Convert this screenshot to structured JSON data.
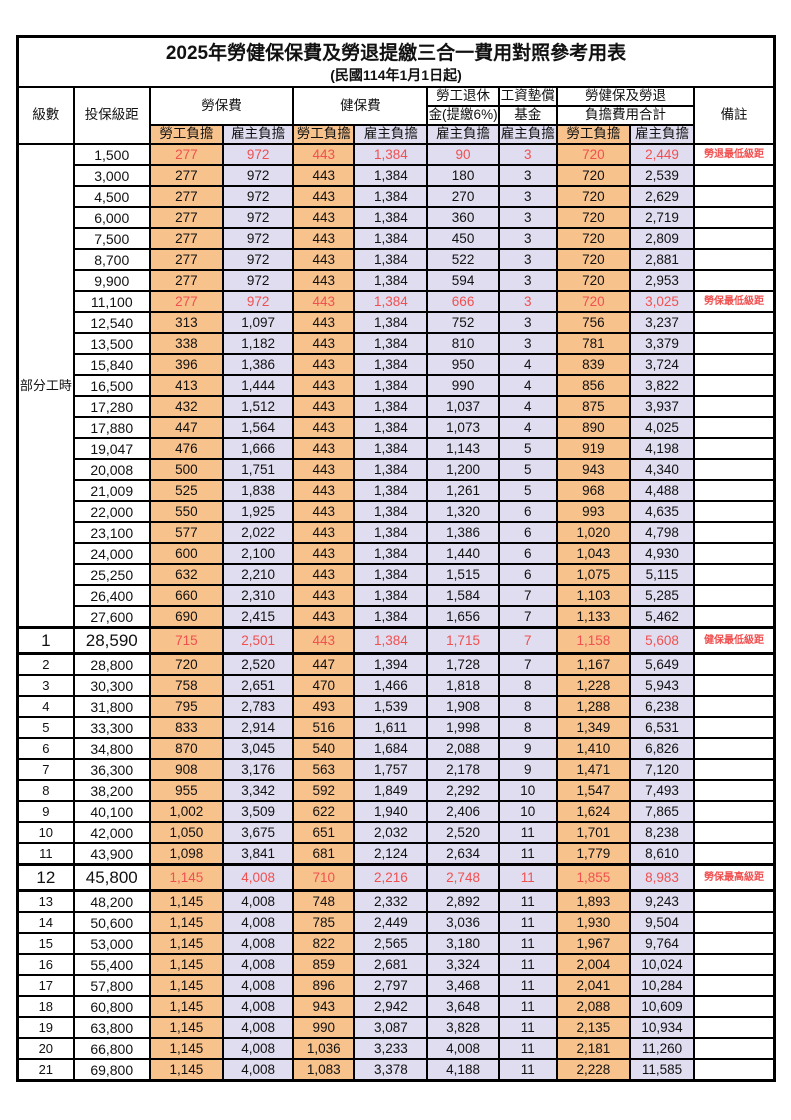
{
  "title": "2025年勞健保保費及勞退提繳三合一費用對照參考用表",
  "subtitle": "(民國114年1月1日起)",
  "colors": {
    "employee_bg": "#F8C28C",
    "employer_bg": "#DFDDEF",
    "highlight_red": "#F05050",
    "border": "#000000"
  },
  "table": {
    "header": {
      "level": "級數",
      "bracket": "投保級距",
      "labor_insurance": "勞保費",
      "health_insurance": "健保費",
      "pension_line1": "勞工退休",
      "pension_line2": "金(提繳6%)",
      "wage_fund_line1": "工資墊償",
      "wage_fund_line2": "基金",
      "total_line1": "勞健保及勞退",
      "total_line2": "負擔費用合計",
      "employee": "勞工負擔",
      "employer": "雇主負擔",
      "remark": "備註"
    },
    "part_time_label": "部分工時",
    "rows": [
      {
        "level": "",
        "bracket": "1,500",
        "values": [
          "277",
          "972",
          "443",
          "1,384",
          "90",
          "3",
          "720",
          "2,449"
        ],
        "remark": "勞退最低級距",
        "highlight": true,
        "big": false
      },
      {
        "level": "",
        "bracket": "3,000",
        "values": [
          "277",
          "972",
          "443",
          "1,384",
          "180",
          "3",
          "720",
          "2,539"
        ],
        "remark": "",
        "highlight": false,
        "big": false
      },
      {
        "level": "",
        "bracket": "4,500",
        "values": [
          "277",
          "972",
          "443",
          "1,384",
          "270",
          "3",
          "720",
          "2,629"
        ],
        "remark": "",
        "highlight": false,
        "big": false
      },
      {
        "level": "",
        "bracket": "6,000",
        "values": [
          "277",
          "972",
          "443",
          "1,384",
          "360",
          "3",
          "720",
          "2,719"
        ],
        "remark": "",
        "highlight": false,
        "big": false
      },
      {
        "level": "",
        "bracket": "7,500",
        "values": [
          "277",
          "972",
          "443",
          "1,384",
          "450",
          "3",
          "720",
          "2,809"
        ],
        "remark": "",
        "highlight": false,
        "big": false
      },
      {
        "level": "",
        "bracket": "8,700",
        "values": [
          "277",
          "972",
          "443",
          "1,384",
          "522",
          "3",
          "720",
          "2,881"
        ],
        "remark": "",
        "highlight": false,
        "big": false
      },
      {
        "level": "",
        "bracket": "9,900",
        "values": [
          "277",
          "972",
          "443",
          "1,384",
          "594",
          "3",
          "720",
          "2,953"
        ],
        "remark": "",
        "highlight": false,
        "big": false
      },
      {
        "level": "",
        "bracket": "11,100",
        "values": [
          "277",
          "972",
          "443",
          "1,384",
          "666",
          "3",
          "720",
          "3,025"
        ],
        "remark": "勞保最低級距",
        "highlight": true,
        "big": false
      },
      {
        "level": "",
        "bracket": "12,540",
        "values": [
          "313",
          "1,097",
          "443",
          "1,384",
          "752",
          "3",
          "756",
          "3,237"
        ],
        "remark": "",
        "highlight": false,
        "big": false
      },
      {
        "level": "",
        "bracket": "13,500",
        "values": [
          "338",
          "1,182",
          "443",
          "1,384",
          "810",
          "3",
          "781",
          "3,379"
        ],
        "remark": "",
        "highlight": false,
        "big": false
      },
      {
        "level": "",
        "bracket": "15,840",
        "values": [
          "396",
          "1,386",
          "443",
          "1,384",
          "950",
          "4",
          "839",
          "3,724"
        ],
        "remark": "",
        "highlight": false,
        "big": false
      },
      {
        "level": "",
        "bracket": "16,500",
        "values": [
          "413",
          "1,444",
          "443",
          "1,384",
          "990",
          "4",
          "856",
          "3,822"
        ],
        "remark": "",
        "highlight": false,
        "big": false
      },
      {
        "level": "",
        "bracket": "17,280",
        "values": [
          "432",
          "1,512",
          "443",
          "1,384",
          "1,037",
          "4",
          "875",
          "3,937"
        ],
        "remark": "",
        "highlight": false,
        "big": false
      },
      {
        "level": "",
        "bracket": "17,880",
        "values": [
          "447",
          "1,564",
          "443",
          "1,384",
          "1,073",
          "4",
          "890",
          "4,025"
        ],
        "remark": "",
        "highlight": false,
        "big": false
      },
      {
        "level": "",
        "bracket": "19,047",
        "values": [
          "476",
          "1,666",
          "443",
          "1,384",
          "1,143",
          "5",
          "919",
          "4,198"
        ],
        "remark": "",
        "highlight": false,
        "big": false
      },
      {
        "level": "",
        "bracket": "20,008",
        "values": [
          "500",
          "1,751",
          "443",
          "1,384",
          "1,200",
          "5",
          "943",
          "4,340"
        ],
        "remark": "",
        "highlight": false,
        "big": false
      },
      {
        "level": "",
        "bracket": "21,009",
        "values": [
          "525",
          "1,838",
          "443",
          "1,384",
          "1,261",
          "5",
          "968",
          "4,488"
        ],
        "remark": "",
        "highlight": false,
        "big": false
      },
      {
        "level": "",
        "bracket": "22,000",
        "values": [
          "550",
          "1,925",
          "443",
          "1,384",
          "1,320",
          "6",
          "993",
          "4,635"
        ],
        "remark": "",
        "highlight": false,
        "big": false
      },
      {
        "level": "",
        "bracket": "23,100",
        "values": [
          "577",
          "2,022",
          "443",
          "1,384",
          "1,386",
          "6",
          "1,020",
          "4,798"
        ],
        "remark": "",
        "highlight": false,
        "big": false
      },
      {
        "level": "",
        "bracket": "24,000",
        "values": [
          "600",
          "2,100",
          "443",
          "1,384",
          "1,440",
          "6",
          "1,043",
          "4,930"
        ],
        "remark": "",
        "highlight": false,
        "big": false
      },
      {
        "level": "",
        "bracket": "25,250",
        "values": [
          "632",
          "2,210",
          "443",
          "1,384",
          "1,515",
          "6",
          "1,075",
          "5,115"
        ],
        "remark": "",
        "highlight": false,
        "big": false
      },
      {
        "level": "",
        "bracket": "26,400",
        "values": [
          "660",
          "2,310",
          "443",
          "1,384",
          "1,584",
          "7",
          "1,103",
          "5,285"
        ],
        "remark": "",
        "highlight": false,
        "big": false
      },
      {
        "level": "",
        "bracket": "27,600",
        "values": [
          "690",
          "2,415",
          "443",
          "1,384",
          "1,656",
          "7",
          "1,133",
          "5,462"
        ],
        "remark": "",
        "highlight": false,
        "big": false
      },
      {
        "level": "1",
        "bracket": "28,590",
        "values": [
          "715",
          "2,501",
          "443",
          "1,384",
          "1,715",
          "7",
          "1,158",
          "5,608"
        ],
        "remark": "健保最低級距",
        "highlight": true,
        "big": true
      },
      {
        "level": "2",
        "bracket": "28,800",
        "values": [
          "720",
          "2,520",
          "447",
          "1,394",
          "1,728",
          "7",
          "1,167",
          "5,649"
        ],
        "remark": "",
        "highlight": false,
        "big": false
      },
      {
        "level": "3",
        "bracket": "30,300",
        "values": [
          "758",
          "2,651",
          "470",
          "1,466",
          "1,818",
          "8",
          "1,228",
          "5,943"
        ],
        "remark": "",
        "highlight": false,
        "big": false
      },
      {
        "level": "4",
        "bracket": "31,800",
        "values": [
          "795",
          "2,783",
          "493",
          "1,539",
          "1,908",
          "8",
          "1,288",
          "6,238"
        ],
        "remark": "",
        "highlight": false,
        "big": false
      },
      {
        "level": "5",
        "bracket": "33,300",
        "values": [
          "833",
          "2,914",
          "516",
          "1,611",
          "1,998",
          "8",
          "1,349",
          "6,531"
        ],
        "remark": "",
        "highlight": false,
        "big": false
      },
      {
        "level": "6",
        "bracket": "34,800",
        "values": [
          "870",
          "3,045",
          "540",
          "1,684",
          "2,088",
          "9",
          "1,410",
          "6,826"
        ],
        "remark": "",
        "highlight": false,
        "big": false
      },
      {
        "level": "7",
        "bracket": "36,300",
        "values": [
          "908",
          "3,176",
          "563",
          "1,757",
          "2,178",
          "9",
          "1,471",
          "7,120"
        ],
        "remark": "",
        "highlight": false,
        "big": false
      },
      {
        "level": "8",
        "bracket": "38,200",
        "values": [
          "955",
          "3,342",
          "592",
          "1,849",
          "2,292",
          "10",
          "1,547",
          "7,493"
        ],
        "remark": "",
        "highlight": false,
        "big": false
      },
      {
        "level": "9",
        "bracket": "40,100",
        "values": [
          "1,002",
          "3,509",
          "622",
          "1,940",
          "2,406",
          "10",
          "1,624",
          "7,865"
        ],
        "remark": "",
        "highlight": false,
        "big": false
      },
      {
        "level": "10",
        "bracket": "42,000",
        "values": [
          "1,050",
          "3,675",
          "651",
          "2,032",
          "2,520",
          "11",
          "1,701",
          "8,238"
        ],
        "remark": "",
        "highlight": false,
        "big": false
      },
      {
        "level": "11",
        "bracket": "43,900",
        "values": [
          "1,098",
          "3,841",
          "681",
          "2,124",
          "2,634",
          "11",
          "1,779",
          "8,610"
        ],
        "remark": "",
        "highlight": false,
        "big": false
      },
      {
        "level": "12",
        "bracket": "45,800",
        "values": [
          "1,145",
          "4,008",
          "710",
          "2,216",
          "2,748",
          "11",
          "1,855",
          "8,983"
        ],
        "remark": "勞保最高級距",
        "highlight": true,
        "big": true
      },
      {
        "level": "13",
        "bracket": "48,200",
        "values": [
          "1,145",
          "4,008",
          "748",
          "2,332",
          "2,892",
          "11",
          "1,893",
          "9,243"
        ],
        "remark": "",
        "highlight": false,
        "big": false
      },
      {
        "level": "14",
        "bracket": "50,600",
        "values": [
          "1,145",
          "4,008",
          "785",
          "2,449",
          "3,036",
          "11",
          "1,930",
          "9,504"
        ],
        "remark": "",
        "highlight": false,
        "big": false
      },
      {
        "level": "15",
        "bracket": "53,000",
        "values": [
          "1,145",
          "4,008",
          "822",
          "2,565",
          "3,180",
          "11",
          "1,967",
          "9,764"
        ],
        "remark": "",
        "highlight": false,
        "big": false
      },
      {
        "level": "16",
        "bracket": "55,400",
        "values": [
          "1,145",
          "4,008",
          "859",
          "2,681",
          "3,324",
          "11",
          "2,004",
          "10,024"
        ],
        "remark": "",
        "highlight": false,
        "big": false
      },
      {
        "level": "17",
        "bracket": "57,800",
        "values": [
          "1,145",
          "4,008",
          "896",
          "2,797",
          "3,468",
          "11",
          "2,041",
          "10,284"
        ],
        "remark": "",
        "highlight": false,
        "big": false
      },
      {
        "level": "18",
        "bracket": "60,800",
        "values": [
          "1,145",
          "4,008",
          "943",
          "2,942",
          "3,648",
          "11",
          "2,088",
          "10,609"
        ],
        "remark": "",
        "highlight": false,
        "big": false
      },
      {
        "level": "19",
        "bracket": "63,800",
        "values": [
          "1,145",
          "4,008",
          "990",
          "3,087",
          "3,828",
          "11",
          "2,135",
          "10,934"
        ],
        "remark": "",
        "highlight": false,
        "big": false
      },
      {
        "level": "20",
        "bracket": "66,800",
        "values": [
          "1,145",
          "4,008",
          "1,036",
          "3,233",
          "4,008",
          "11",
          "2,181",
          "11,260"
        ],
        "remark": "",
        "highlight": false,
        "big": false
      },
      {
        "level": "21",
        "bracket": "69,800",
        "values": [
          "1,145",
          "4,008",
          "1,083",
          "3,378",
          "4,188",
          "11",
          "2,228",
          "11,585"
        ],
        "remark": "",
        "highlight": false,
        "big": false
      }
    ]
  }
}
